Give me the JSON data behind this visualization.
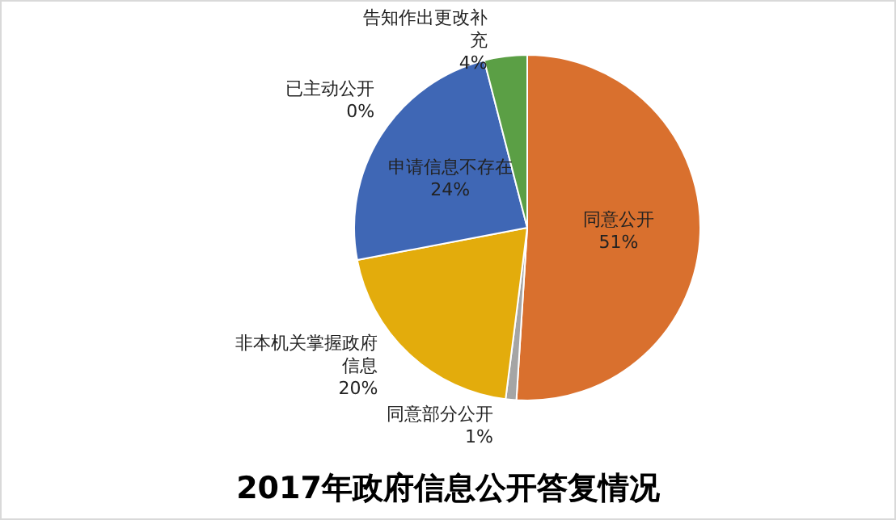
{
  "chart_data": {
    "type": "pie",
    "title": "2017年政府信息公开答复情况",
    "categories": [
      "已主动公开",
      "同意公开",
      "同意部分公开",
      "非本机关掌握政府信息",
      "申请信息不存在",
      "告知作出更改补充"
    ],
    "values": [
      0,
      51,
      1,
      20,
      24,
      4
    ],
    "colors": [
      "#4472c4",
      "#d9702e",
      "#a5a5a5",
      "#e3ac0c",
      "#3f67b5",
      "#5b9f45"
    ],
    "value_labels": [
      "0%",
      "51%",
      "1%",
      "20%",
      "24%",
      "4%"
    ],
    "legend": false
  }
}
